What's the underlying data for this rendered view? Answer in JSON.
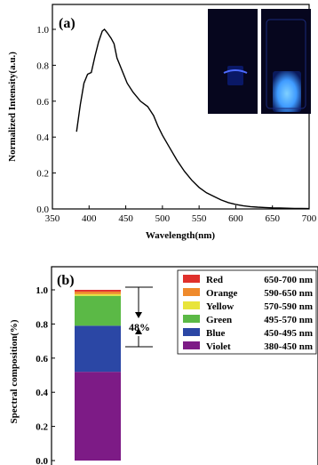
{
  "chart_data": [
    {
      "type": "line",
      "panel_label": "(a)",
      "xlabel": "Wavelength(nm)",
      "ylabel": "Normalized Intensity(a.u.)",
      "xlim": [
        350,
        700
      ],
      "ylim": [
        0.0,
        1.0
      ],
      "x_ticks": [
        "350",
        "400",
        "450",
        "500",
        "550",
        "600",
        "650",
        "700"
      ],
      "y_ticks": [
        "0.0",
        "0.2",
        "0.4",
        "0.6",
        "0.8",
        "1.0"
      ],
      "series": [
        {
          "x": [
            383,
            388,
            393,
            398,
            403,
            408,
            413,
            418,
            421,
            425,
            430,
            434,
            438,
            442,
            447,
            452,
            460,
            470,
            480,
            488,
            494,
            500,
            510,
            520,
            530,
            540,
            550,
            560,
            570,
            580,
            590,
            600,
            610,
            620,
            630,
            640,
            650,
            660,
            670,
            680,
            690,
            700
          ],
          "y": [
            0.43,
            0.58,
            0.7,
            0.75,
            0.76,
            0.85,
            0.93,
            0.99,
            1.0,
            0.98,
            0.95,
            0.92,
            0.84,
            0.8,
            0.75,
            0.7,
            0.65,
            0.6,
            0.57,
            0.52,
            0.46,
            0.41,
            0.34,
            0.27,
            0.21,
            0.16,
            0.12,
            0.09,
            0.07,
            0.05,
            0.035,
            0.025,
            0.018,
            0.013,
            0.01,
            0.008,
            0.006,
            0.005,
            0.004,
            0.003,
            0.003,
            0.002
          ]
        }
      ],
      "inset": "two photographs of a vial under illumination, dark blue background",
      "colors": {
        "line": "#000000",
        "inset_bg": "#06061e",
        "inset_glow": "#3f9bff"
      }
    },
    {
      "type": "bar",
      "panel_label": "(b)",
      "ylabel": "Spectral composition(%)",
      "ylim": [
        0.0,
        1.0
      ],
      "y_ticks": [
        "0.0",
        "0.2",
        "0.4",
        "0.6",
        "0.8",
        "1.0"
      ],
      "stacked": true,
      "series": [
        {
          "name": "Violet",
          "range": "380-450 nm",
          "value": 0.52,
          "color": "#7d1b86"
        },
        {
          "name": "Blue",
          "range": "450-495 nm",
          "value": 0.27,
          "color": "#2b47a5"
        },
        {
          "name": "Green",
          "range": "495-570 nm",
          "value": 0.175,
          "color": "#5bb946"
        },
        {
          "name": "Yellow",
          "range": "570-590 nm",
          "value": 0.01,
          "color": "#e8e43a"
        },
        {
          "name": "Orange",
          "range": "590-650 nm",
          "value": 0.015,
          "color": "#ef8a2c"
        },
        {
          "name": "Red",
          "range": "650-700 nm",
          "value": 0.01,
          "color": "#e0302c"
        }
      ],
      "annotation": "48%",
      "legend_position": "top-right"
    }
  ]
}
